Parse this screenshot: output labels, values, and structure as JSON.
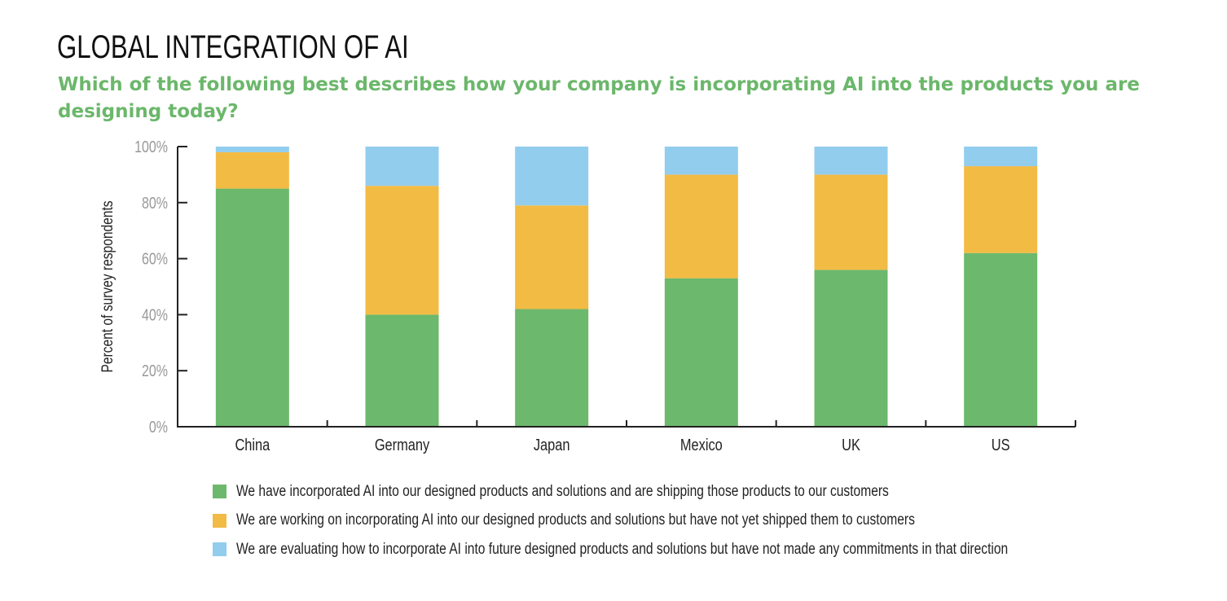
{
  "header": {
    "title": "GLOBAL INTEGRATION OF AI",
    "subtitle": "Which of the following best describes how your company is incorporating AI into the products you are designing today?"
  },
  "chart_data": {
    "type": "bar",
    "stacked": true,
    "title": "GLOBAL INTEGRATION OF AI",
    "subtitle": "Which of the following best describes how your company is incorporating AI into the products you are designing today?",
    "xlabel": "",
    "ylabel": "Percent of survey respondents",
    "ylim": [
      0,
      100
    ],
    "yticks": [
      "0%",
      "20%",
      "40%",
      "60%",
      "80%",
      "100%"
    ],
    "ytick_values": [
      0,
      20,
      40,
      60,
      80,
      100
    ],
    "grid": false,
    "legend_position": "bottom",
    "categories": [
      "China",
      "Germany",
      "Japan",
      "Mexico",
      "UK",
      "US"
    ],
    "series": [
      {
        "name": "We have incorporated AI into our designed products and solutions and are shipping those products to our customers",
        "color": "#6cb86d",
        "values": [
          85,
          40,
          42,
          53,
          56,
          62
        ]
      },
      {
        "name": "We are working on incorporating AI into our designed products and solutions but have not yet shipped them to customers",
        "color": "#f2bb44",
        "values": [
          13,
          46,
          37,
          37,
          34,
          31
        ]
      },
      {
        "name": "We are evaluating how to incorporate AI into future designed products and solutions but have not made any commitments in that direction",
        "color": "#92cdee",
        "values": [
          2,
          14,
          21,
          10,
          10,
          7
        ]
      }
    ]
  }
}
